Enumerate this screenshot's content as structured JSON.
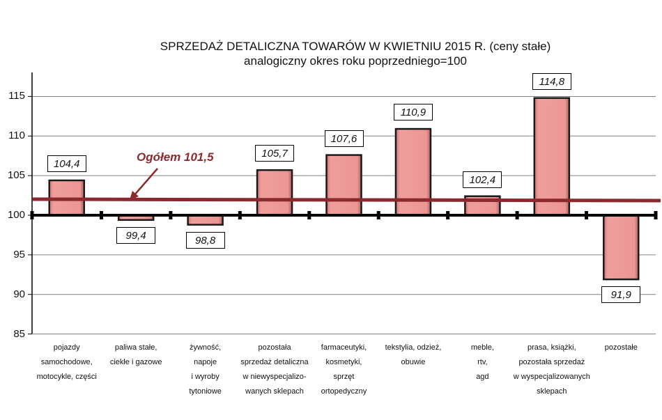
{
  "chart_data": {
    "type": "bar",
    "title": "SPRZEDAŻ DETALICZNA TOWARÓW W KWIETNIU 2015 R. (ceny stałe)",
    "subtitle": "analogiczny okres roku poprzedniego=100",
    "xlabel": "",
    "ylabel": "",
    "ylim": [
      85,
      118
    ],
    "yticks": [
      "85",
      "90",
      "95",
      "100",
      "105",
      "110",
      "115"
    ],
    "baseline": 100,
    "grid": true,
    "categories": [
      "pojazdy samochodowe, motocykle, części",
      "paliwa stałe, ciekłe i gazowe",
      "żywność, napoje i wyroby tytoniowe",
      "pozostała sprzedaż detaliczna w niewyspecjalizowanych sklepach",
      "farmaceutyki, kosmetyki, sprzęt ortopedyczny",
      "tekstylia, odzież, obuwie",
      "meble, rtv, agd",
      "prasa, książki, pozostała sprzedaż w wyspecjalizowanych sklepach",
      "pozostałe"
    ],
    "values": [
      104.4,
      99.4,
      98.8,
      105.7,
      107.6,
      110.9,
      102.4,
      114.8,
      91.9
    ],
    "value_labels": [
      "104,4",
      "99,4",
      "98,8",
      "105,7",
      "107,6",
      "110,9",
      "102,4",
      "114,8",
      "91,9"
    ],
    "reference_line": {
      "label": "Ogółem 101,5",
      "value": 101.5
    },
    "colors": {
      "bar": "#e8908f",
      "reference_line": "#8b2a2e",
      "axis": "#000000",
      "grid": "#808080"
    }
  },
  "category_label_lines": [
    [
      "pojazdy",
      "samochodowe,",
      "motocykle, części"
    ],
    [
      "paliwa stałe,",
      "ciekłe i gazowe"
    ],
    [
      "żywność,",
      "napoje",
      "i wyroby",
      "tytoniowe"
    ],
    [
      "pozostała",
      "sprzedaż detaliczna",
      "w niewyspecjalizo-",
      "wanych sklepach"
    ],
    [
      "farmaceutyki,",
      "kosmetyki,",
      "sprzęt",
      "ortopedyczny"
    ],
    [
      "tekstylia, odzież,",
      "obuwie"
    ],
    [
      "meble,",
      "rtv,",
      "agd"
    ],
    [
      "prasa, książki,",
      "pozostała sprzedaż",
      "w wyspecjalizowanych",
      "sklepach"
    ],
    [
      "pozostałe"
    ]
  ]
}
